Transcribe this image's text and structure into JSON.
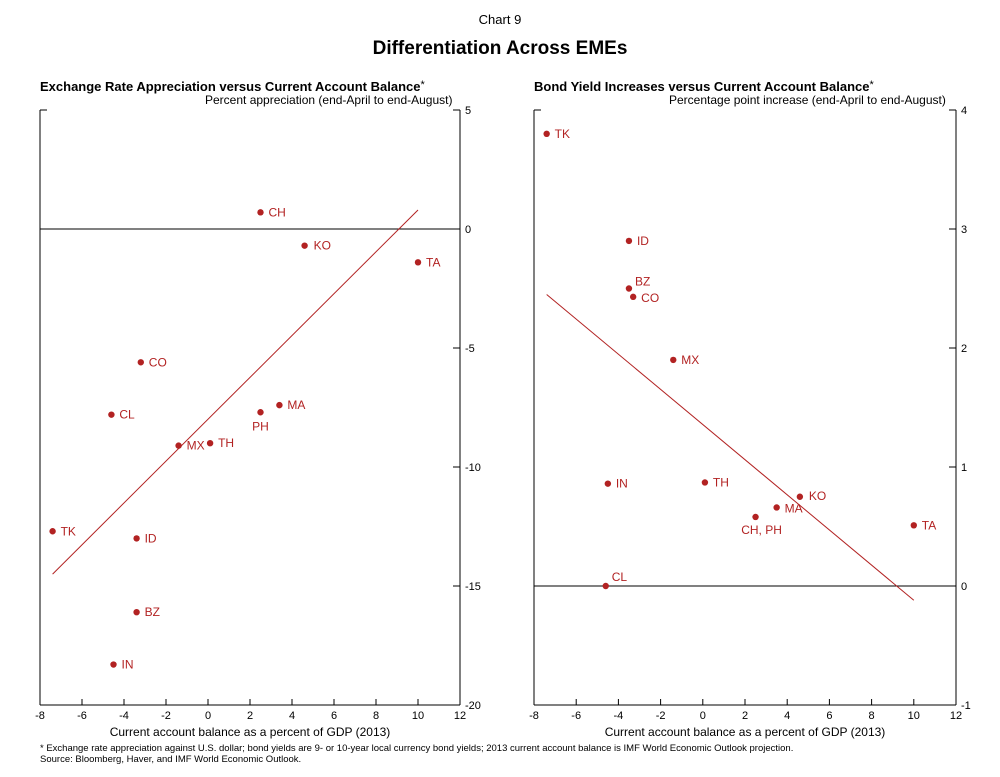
{
  "header": {
    "chart_number": "Chart 9",
    "title": "Differentiation Across EMEs"
  },
  "footnotes": {
    "note": "* Exchange rate appreciation against U.S. dollar; bond yields are 9- or 10-year local currency bond yields; 2013 current account balance is IMF World Economic Outlook projection.",
    "source": "Source: Bloomberg, Haver, and IMF World Economic Outlook."
  },
  "colors": {
    "series": "#b22222",
    "axis": "#000000"
  },
  "chart_data": [
    {
      "type": "scatter",
      "title": "Exchange Rate Appreciation versus Current Account Balance",
      "title_marker": "*",
      "subtitle": "Percent appreciation (end-April to end-August)",
      "xlabel": "Current account balance as a percent of GDP (2013)",
      "ylabel": "",
      "xlim": [
        -8,
        12
      ],
      "ylim": [
        -20,
        5
      ],
      "xticks": [
        "-8",
        "-6",
        "-4",
        "-2",
        "0",
        "2",
        "4",
        "6",
        "8",
        "10",
        "12"
      ],
      "yticks": [
        "5",
        "0",
        "-5",
        "-10",
        "-15",
        "-20"
      ],
      "ytick_values": [
        5,
        0,
        -5,
        -10,
        -15,
        -20
      ],
      "y_axis_side": "right",
      "zero_line": true,
      "grid": false,
      "points": [
        {
          "label": "TK",
          "x": -7.4,
          "y": -12.7
        },
        {
          "label": "IN",
          "x": -4.5,
          "y": -18.3
        },
        {
          "label": "CL",
          "x": -4.6,
          "y": -7.8
        },
        {
          "label": "ID",
          "x": -3.4,
          "y": -13.0
        },
        {
          "label": "BZ",
          "x": -3.4,
          "y": -16.1
        },
        {
          "label": "CO",
          "x": -3.2,
          "y": -5.6
        },
        {
          "label": "MX",
          "x": -1.4,
          "y": -9.1
        },
        {
          "label": "TH",
          "x": 0.1,
          "y": -9.0
        },
        {
          "label": "CH",
          "x": 2.5,
          "y": 0.7
        },
        {
          "label": "PH",
          "x": 2.5,
          "y": -7.7
        },
        {
          "label": "MA",
          "x": 3.4,
          "y": -7.4
        },
        {
          "label": "KO",
          "x": 4.6,
          "y": -0.7
        },
        {
          "label": "TA",
          "x": 10.0,
          "y": -1.4
        }
      ],
      "trend_line": {
        "x": [
          -7.4,
          10.0
        ],
        "y": [
          -14.5,
          0.8
        ]
      }
    },
    {
      "type": "scatter",
      "title": "Bond Yield Increases versus Current Account Balance",
      "title_marker": "*",
      "subtitle": "Percentage point increase (end-April to end-August)",
      "xlabel": "Current account balance as a percent of GDP (2013)",
      "ylabel": "",
      "xlim": [
        -8,
        12
      ],
      "ylim": [
        -1,
        4
      ],
      "xticks": [
        "-8",
        "-6",
        "-4",
        "-2",
        "0",
        "2",
        "4",
        "6",
        "8",
        "10",
        "12"
      ],
      "yticks": [
        "4",
        "3",
        "2",
        "1",
        "0",
        "-1"
      ],
      "ytick_values": [
        4,
        3,
        2,
        1,
        0,
        -1
      ],
      "y_axis_side": "right",
      "zero_line": true,
      "grid": false,
      "points": [
        {
          "label": "TK",
          "x": -7.4,
          "y": 3.8
        },
        {
          "label": "ID",
          "x": -3.5,
          "y": 2.9
        },
        {
          "label": "BZ",
          "x": -3.5,
          "y": 2.5
        },
        {
          "label": "CO",
          "x": -3.3,
          "y": 2.43
        },
        {
          "label": "MX",
          "x": -1.4,
          "y": 1.9
        },
        {
          "label": "IN",
          "x": -4.5,
          "y": 0.86
        },
        {
          "label": "TH",
          "x": 0.1,
          "y": 0.87
        },
        {
          "label": "CH, PH",
          "x": 2.5,
          "y": 0.58
        },
        {
          "label": "MA",
          "x": 3.5,
          "y": 0.66
        },
        {
          "label": "KO",
          "x": 4.6,
          "y": 0.75
        },
        {
          "label": "TA",
          "x": 10.0,
          "y": 0.51
        },
        {
          "label": "CL",
          "x": -4.6,
          "y": 0.0
        }
      ],
      "trend_line": {
        "x": [
          -7.4,
          10.0
        ],
        "y": [
          2.45,
          -0.12
        ]
      }
    }
  ]
}
